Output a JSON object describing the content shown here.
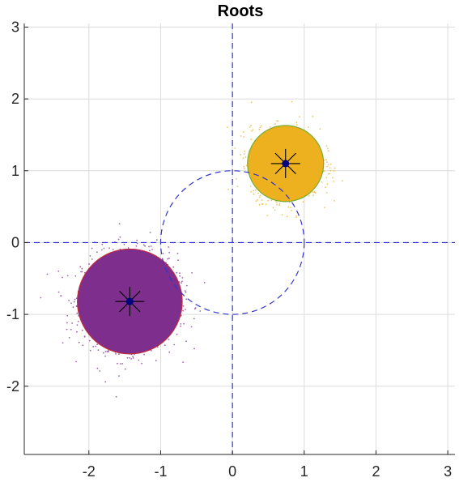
{
  "chart_data": {
    "type": "scatter",
    "title": "Roots",
    "xlabel": "",
    "ylabel": "",
    "xlim": [
      -2.9,
      3.1
    ],
    "ylim": [
      -2.95,
      3.05
    ],
    "xticks": [
      -2,
      -1,
      0,
      1,
      2,
      3
    ],
    "yticks": [
      -2,
      -1,
      0,
      1,
      2,
      3
    ],
    "xtick_labels": [
      "-2",
      "-1",
      "0",
      "1",
      "2",
      "3"
    ],
    "ytick_labels": [
      "-2",
      "-1",
      "0",
      "1",
      "2",
      "3"
    ],
    "grid": true,
    "unit_circle": {
      "center": [
        0,
        0
      ],
      "radius": 1,
      "color": "#3333cc",
      "style": "dashed"
    },
    "reference_lines": {
      "x": 0,
      "y": 0,
      "color": "#3333cc",
      "style": "dashed"
    },
    "clusters": [
      {
        "center": [
          -1.43,
          -0.82
        ],
        "radius": 0.73,
        "fill_color": "#7e2f8e",
        "outline_color": "#c02b3a",
        "spread": 0.33,
        "points": 1500
      },
      {
        "center": [
          0.74,
          1.1
        ],
        "radius": 0.53,
        "fill_color": "#edb120",
        "outline_color": "#77ac30",
        "spread": 0.24,
        "points": 1300
      }
    ],
    "root_markers": [
      {
        "x": -1.43,
        "y": -0.82
      },
      {
        "x": 0.74,
        "y": 1.1
      }
    ],
    "marker_color": "#000080"
  }
}
